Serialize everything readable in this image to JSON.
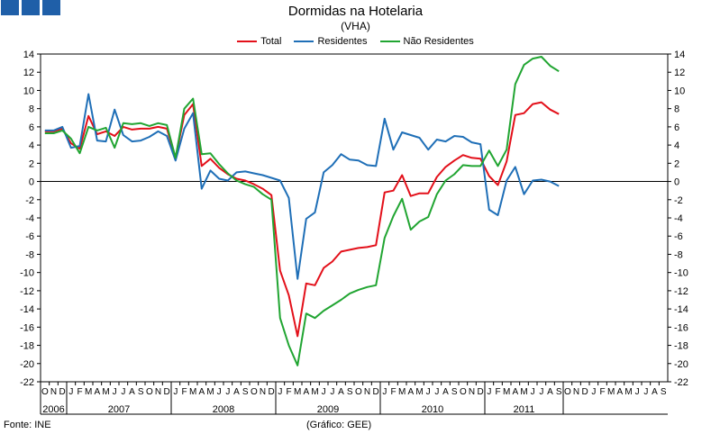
{
  "header": {
    "title": "Dormidas na Hotelaria",
    "subtitle": "(VHA)"
  },
  "legend": {
    "items": [
      {
        "label": "Total",
        "color": "#e3101a"
      },
      {
        "label": "Residentes",
        "color": "#1f6fb7"
      },
      {
        "label": "Não Residentes",
        "color": "#21a532"
      }
    ]
  },
  "footer": {
    "source": "Fonte: INE",
    "credit": "(Gráfico: GEE)"
  },
  "logo": {
    "icon": "gee-logo-squares",
    "color": "#1f5fa8"
  },
  "chart_data": {
    "type": "line",
    "title": "Dormidas na Hotelaria",
    "subtitle": "(VHA)",
    "ylim": [
      -22,
      14
    ],
    "yticks": [
      14,
      12,
      10,
      8,
      6,
      4,
      2,
      0,
      -2,
      -4,
      -6,
      -8,
      -10,
      -12,
      -14,
      -16,
      -18,
      -20,
      -22
    ],
    "grid": false,
    "legend_position": "top-center",
    "x_month_labels": [
      "O",
      "N",
      "D",
      "J",
      "F",
      "M",
      "A",
      "M",
      "J",
      "J",
      "A",
      "S",
      "O",
      "N",
      "D",
      "J",
      "F",
      "M",
      "A",
      "M",
      "J",
      "J",
      "A",
      "S",
      "O",
      "N",
      "D",
      "J",
      "F",
      "M",
      "A",
      "M",
      "J",
      "J",
      "A",
      "S",
      "O",
      "N",
      "D",
      "J",
      "F",
      "M",
      "A",
      "M",
      "J",
      "J",
      "A",
      "S",
      "O",
      "N",
      "D",
      "J",
      "F",
      "M",
      "A",
      "M",
      "J",
      "J",
      "A",
      "S",
      "O",
      "N",
      "D",
      "J",
      "F",
      "M",
      "A",
      "M",
      "J",
      "J",
      "A",
      "S"
    ],
    "x_year_groups": [
      {
        "label": "2006",
        "start": 0,
        "count": 3
      },
      {
        "label": "2007",
        "start": 3,
        "count": 12
      },
      {
        "label": "2008",
        "start": 15,
        "count": 12
      },
      {
        "label": "2009",
        "start": 27,
        "count": 12
      },
      {
        "label": "2010",
        "start": 39,
        "count": 12
      },
      {
        "label": "2011",
        "start": 51,
        "count": 9
      }
    ],
    "series": [
      {
        "name": "Total",
        "color": "#e3101a",
        "values": [
          5.5,
          5.5,
          5.8,
          4.2,
          3.6,
          7.2,
          5.2,
          5.5,
          5.0,
          6.0,
          5.7,
          5.8,
          5.8,
          6.0,
          5.8,
          2.6,
          7.3,
          8.5,
          1.7,
          2.5,
          1.5,
          0.8,
          0.3,
          0.1,
          -0.3,
          -0.8,
          -1.5,
          -9.8,
          -12.5,
          -17.0,
          -11.2,
          -11.4,
          -9.5,
          -8.8,
          -7.7,
          -7.5,
          -7.3,
          -7.2,
          -7.0,
          -1.2,
          -1.0,
          0.7,
          -1.6,
          -1.3,
          -1.3,
          0.5,
          1.6,
          2.3,
          2.9,
          2.6,
          2.5,
          0.6,
          -0.4,
          2.2,
          7.3,
          7.5,
          8.5,
          8.7,
          7.9,
          7.4
        ]
      },
      {
        "name": "Residentes",
        "color": "#1f6fb7",
        "values": [
          5.6,
          5.6,
          6.0,
          3.7,
          3.9,
          9.6,
          4.5,
          4.4,
          7.9,
          5.1,
          4.4,
          4.5,
          4.9,
          5.5,
          5.0,
          2.3,
          5.8,
          7.5,
          -0.8,
          1.2,
          0.3,
          0.1,
          1.0,
          1.1,
          0.9,
          0.7,
          0.4,
          0.1,
          -1.8,
          -10.7,
          -4.1,
          -3.4,
          1.0,
          1.8,
          3.0,
          2.4,
          2.3,
          1.8,
          1.7,
          6.9,
          3.5,
          5.4,
          5.1,
          4.8,
          3.5,
          4.6,
          4.4,
          5.0,
          4.9,
          4.3,
          4.1,
          -3.1,
          -3.7,
          0.1,
          1.6,
          -1.4,
          0.1,
          0.2,
          0.0,
          -0.5
        ]
      },
      {
        "name": "Não Residentes",
        "color": "#21a532",
        "values": [
          5.3,
          5.3,
          5.6,
          4.7,
          3.1,
          6.0,
          5.6,
          5.9,
          3.7,
          6.4,
          6.3,
          6.4,
          6.1,
          6.4,
          6.2,
          2.6,
          8.0,
          9.1,
          3.0,
          3.1,
          1.9,
          0.9,
          0.1,
          -0.3,
          -0.6,
          -1.4,
          -2.0,
          -15.0,
          -18.0,
          -20.2,
          -14.5,
          -15.0,
          -14.2,
          -13.6,
          -13.0,
          -12.3,
          -11.9,
          -11.6,
          -11.4,
          -6.2,
          -3.8,
          -1.9,
          -5.3,
          -4.4,
          -3.9,
          -1.4,
          0.1,
          0.8,
          1.8,
          1.7,
          1.7,
          3.4,
          1.7,
          3.5,
          10.7,
          12.8,
          13.5,
          13.7,
          12.7,
          12.1
        ]
      }
    ]
  }
}
